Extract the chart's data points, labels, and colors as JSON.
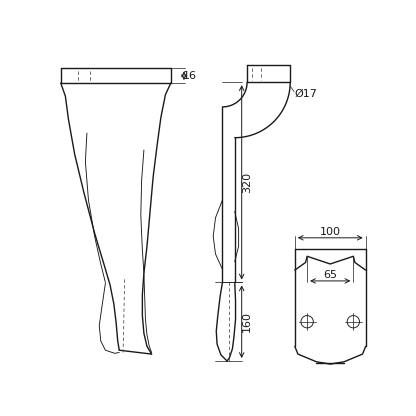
{
  "bg_color": "#ffffff",
  "line_color": "#1a1a1a",
  "dim_color": "#1a1a1a",
  "lw": 1.0,
  "tlw": 0.65,
  "fig_size": [
    4.16,
    4.16
  ],
  "dpi": 100,
  "labels": {
    "dim_16": "16",
    "dim_320": "320",
    "dim_17": "Ø17",
    "dim_160": "160",
    "dim_100": "100",
    "dim_65": "65"
  }
}
